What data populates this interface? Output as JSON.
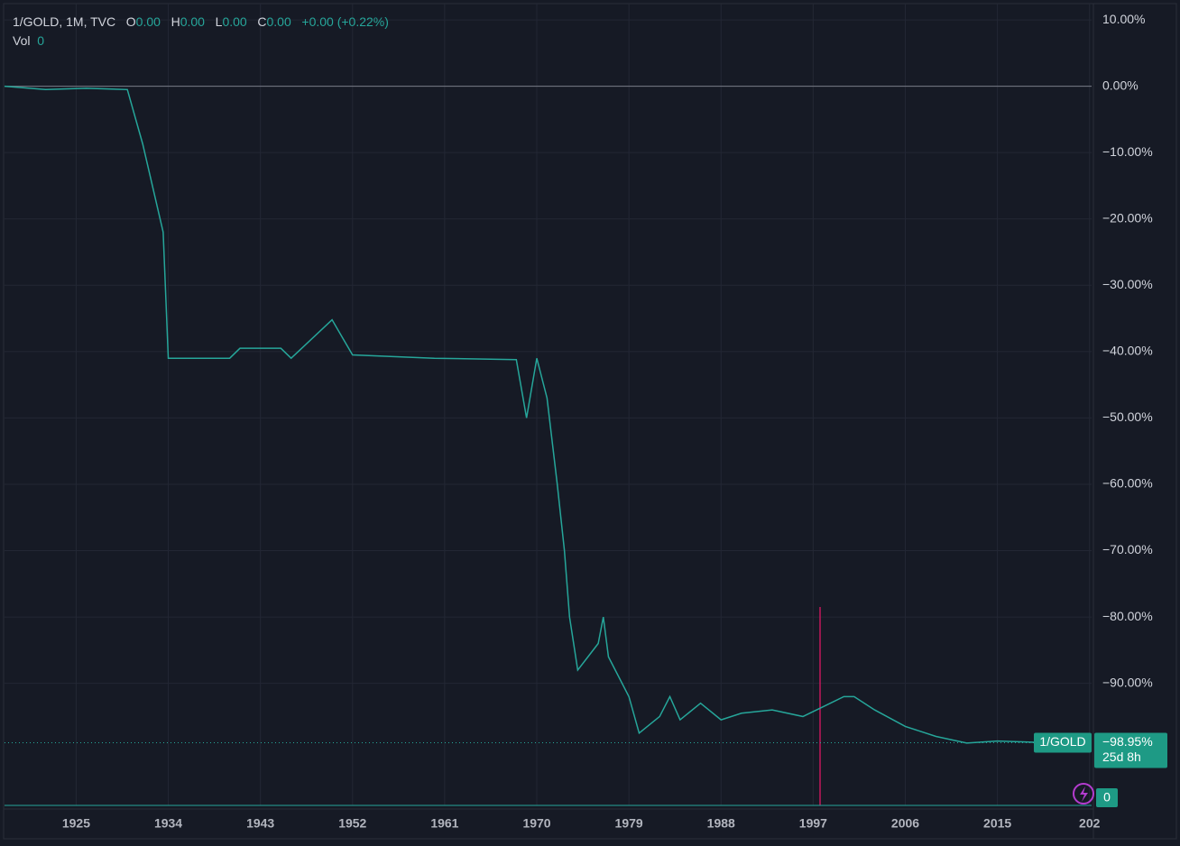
{
  "chart_data": {
    "type": "line",
    "header": {
      "symbol": "1/GOLD, 1M, TVC",
      "o": "O",
      "o_value": "0.00",
      "h": "H",
      "h_value": "0.00",
      "l": "L",
      "l_value": "0.00",
      "c": "C",
      "c_value": "0.00",
      "change": "+0.00 (+0.22%)",
      "vol": "Vol",
      "vol_value": "0"
    },
    "x": [
      1918,
      1922,
      1926,
      1930,
      1931.5,
      1933.5,
      1934,
      1940,
      1941,
      1945,
      1946,
      1950,
      1952,
      1960,
      1968,
      1969,
      1970,
      1971,
      1972,
      1972.7,
      1973.2,
      1974,
      1975,
      1976,
      1976.5,
      1977,
      1979,
      1980,
      1982,
      1983,
      1984,
      1986,
      1988,
      1990,
      1993,
      1996,
      1998,
      2000,
      2001,
      2003,
      2006,
      2009,
      2012,
      2015,
      2019,
      2020.5
    ],
    "values": [
      0,
      -0.5,
      -0.3,
      -0.5,
      -8.7,
      -22,
      -41,
      -41,
      -39.5,
      -39.5,
      -41,
      -35.2,
      -40.5,
      -41,
      -41.2,
      -50,
      -41,
      -47,
      -60,
      -70,
      -80,
      -88,
      -86,
      -84,
      -80,
      -86,
      -92,
      -97.5,
      -95,
      -92,
      -95.5,
      -93,
      -95.5,
      -94.5,
      -94,
      -95,
      -93.5,
      -92,
      -92,
      -94,
      -96.5,
      -98,
      -99,
      -98.7,
      -98.9,
      -98.95
    ],
    "color": "#26a69a",
    "xlim": [
      1918,
      2024.2
    ],
    "ylim": [
      -108.4,
      13
    ],
    "xticks": [
      1925,
      1934,
      1943,
      1952,
      1961,
      1970,
      1979,
      1988,
      1997,
      2006,
      2015,
      {
        "value": 2024,
        "label": "202"
      }
    ],
    "yticks": [
      {
        "value": 10,
        "label": "10.00%"
      },
      {
        "value": 0,
        "label": "0.00%"
      },
      {
        "value": -10,
        "label": "−10.00%"
      },
      {
        "value": -20,
        "label": "−20.00%"
      },
      {
        "value": -30,
        "label": "−30.00%"
      },
      {
        "value": -40,
        "label": "−40.00%"
      },
      {
        "value": -50,
        "label": "−50.00%"
      },
      {
        "value": -60,
        "label": "−60.00%"
      },
      {
        "value": -70,
        "label": "−70.00%"
      },
      {
        "value": -80,
        "label": "−80.00%"
      },
      {
        "value": -90,
        "label": "−90.00%"
      }
    ],
    "grid": true,
    "last_value": {
      "value": -98.95,
      "label": "−98.95%"
    },
    "last_tag": "1/GOLD",
    "countdown": "25d 8h",
    "volume_badge": "0"
  }
}
